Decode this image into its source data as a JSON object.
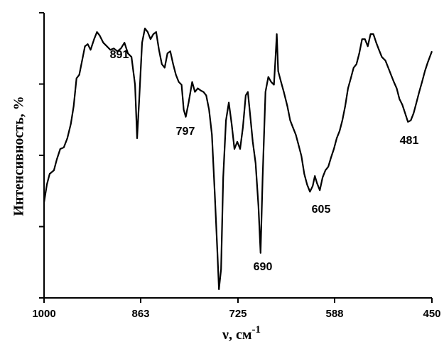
{
  "chart_data": {
    "type": "line",
    "y_label": "Интенсивность, %",
    "x_label": {
      "text": "ν, см",
      "superscript": "-1"
    },
    "xlim": [
      1000,
      450
    ],
    "xticks": [
      1000,
      863,
      725,
      588,
      450
    ],
    "ylim": [
      0,
      4
    ],
    "yticks": [
      0,
      1,
      2,
      3,
      4
    ],
    "color": "#000000",
    "annotations": [
      "891",
      "797",
      "690",
      "605",
      "481"
    ],
    "x": [
      1000,
      996,
      992,
      986,
      982,
      977,
      972,
      967,
      962,
      958,
      954,
      950,
      946,
      942,
      938,
      934,
      929,
      925,
      921,
      916,
      911,
      906,
      901,
      896,
      891,
      886,
      881,
      876,
      871,
      868,
      865,
      861,
      857,
      853,
      849,
      845,
      841,
      837,
      833,
      829,
      825,
      821,
      817,
      813,
      809,
      805,
      802,
      799,
      795,
      790,
      786,
      782,
      778,
      774,
      770,
      766,
      762,
      758,
      754,
      752,
      749,
      746,
      742,
      738,
      734,
      730,
      726,
      722,
      718,
      714,
      711,
      708,
      704,
      700,
      696,
      693,
      690,
      686,
      682,
      678,
      674,
      672,
      670,
      668,
      664,
      660,
      655,
      651,
      647,
      643,
      639,
      635,
      631,
      627,
      623,
      619,
      616,
      613,
      609,
      605,
      601,
      597,
      593,
      589,
      585,
      581,
      577,
      573,
      569,
      565,
      561,
      557,
      553,
      549,
      545,
      541,
      537,
      533,
      529,
      525,
      521,
      516,
      512,
      508,
      504,
      500,
      496,
      492,
      488,
      484,
      480,
      476,
      472,
      468,
      464,
      460,
      456,
      450
    ],
    "values": [
      1.34,
      1.59,
      1.74,
      1.79,
      1.94,
      2.09,
      2.11,
      2.24,
      2.44,
      2.69,
      3.08,
      3.13,
      3.33,
      3.53,
      3.56,
      3.48,
      3.63,
      3.73,
      3.68,
      3.58,
      3.53,
      3.48,
      3.5,
      3.46,
      3.5,
      3.58,
      3.43,
      3.38,
      2.99,
      2.24,
      2.79,
      3.58,
      3.78,
      3.73,
      3.63,
      3.7,
      3.73,
      3.48,
      3.28,
      3.23,
      3.43,
      3.46,
      3.28,
      3.13,
      3.03,
      2.99,
      2.64,
      2.54,
      2.74,
      3.03,
      2.89,
      2.94,
      2.91,
      2.89,
      2.84,
      2.64,
      2.29,
      1.49,
      0.6,
      0.12,
      0.4,
      1.69,
      2.49,
      2.74,
      2.44,
      2.09,
      2.19,
      2.09,
      2.39,
      2.84,
      2.89,
      2.59,
      2.19,
      1.89,
      1.29,
      0.63,
      1.69,
      2.89,
      3.1,
      3.03,
      2.99,
      3.33,
      3.7,
      3.18,
      3.03,
      2.89,
      2.69,
      2.49,
      2.39,
      2.29,
      2.14,
      1.99,
      1.74,
      1.59,
      1.49,
      1.57,
      1.71,
      1.61,
      1.51,
      1.69,
      1.79,
      1.84,
      1.97,
      2.09,
      2.24,
      2.34,
      2.49,
      2.69,
      2.94,
      3.08,
      3.23,
      3.28,
      3.43,
      3.63,
      3.63,
      3.53,
      3.7,
      3.7,
      3.58,
      3.48,
      3.38,
      3.33,
      3.23,
      3.13,
      3.03,
      2.94,
      2.79,
      2.71,
      2.59,
      2.47,
      2.49,
      2.59,
      2.74,
      2.89,
      3.03,
      3.18,
      3.3,
      3.46
    ]
  }
}
